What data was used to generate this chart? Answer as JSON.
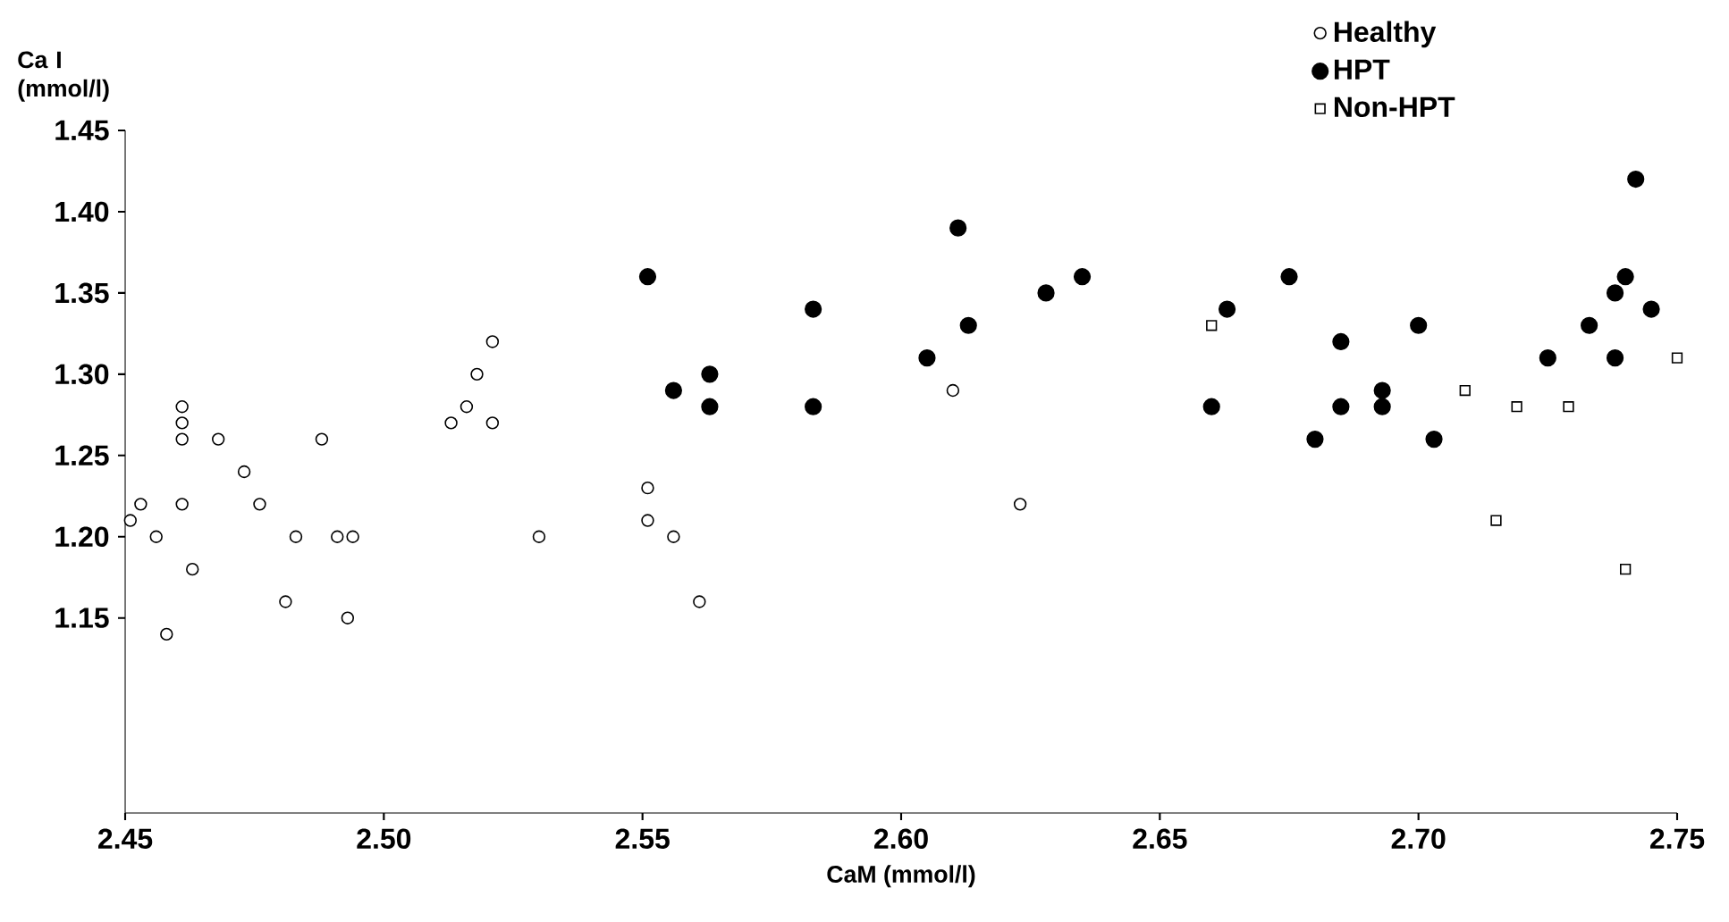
{
  "chart_data": {
    "type": "scatter",
    "xlabel": "CaM (mmol/l)",
    "ylabel": "Ca I (mmol/l)",
    "xlim": [
      2.45,
      2.75
    ],
    "ylim": [
      1.03,
      1.45
    ],
    "xticks": [
      2.45,
      {
        "value": 2.5,
        "label": "2.50"
      },
      2.55,
      {
        "value": 2.6,
        "label": "2.60"
      },
      2.65,
      {
        "value": 2.7,
        "label": "2.70"
      },
      2.75
    ],
    "yticks": [
      1.15,
      {
        "value": 1.2,
        "label": "1.20"
      },
      1.25,
      {
        "value": 1.3,
        "label": "1.30"
      },
      1.35,
      {
        "value": 1.4,
        "label": "1.40"
      },
      1.45
    ],
    "grid": false,
    "legend": "top right",
    "series": [
      {
        "name": "Healthy",
        "color": "#ffffff",
        "marker": "circle",
        "x": [
          2.451,
          2.453,
          2.456,
          2.458,
          2.461,
          2.461,
          2.461,
          2.461,
          2.463,
          2.468,
          2.473,
          2.476,
          2.481,
          2.483,
          2.488,
          2.491,
          2.494,
          2.493,
          2.513,
          2.516,
          2.518,
          2.521,
          2.521,
          2.53,
          2.551,
          2.551,
          2.556,
          2.561,
          2.61,
          2.623
        ],
        "values": [
          1.21,
          1.22,
          1.2,
          1.14,
          1.28,
          1.27,
          1.26,
          1.22,
          1.18,
          1.26,
          1.24,
          1.22,
          1.16,
          1.2,
          1.26,
          1.2,
          1.2,
          1.15,
          1.27,
          1.28,
          1.3,
          1.32,
          1.27,
          1.2,
          1.23,
          1.21,
          1.2,
          1.16,
          1.29,
          1.22
        ]
      },
      {
        "name": "HPT",
        "color": "#000000",
        "marker": "circle",
        "x": [
          2.551,
          2.556,
          2.563,
          2.563,
          2.583,
          2.583,
          2.605,
          2.611,
          2.613,
          2.628,
          2.635,
          2.66,
          2.663,
          2.675,
          2.685,
          2.685,
          2.68,
          2.693,
          2.693,
          2.7,
          2.703,
          2.725,
          2.733,
          2.738,
          2.74,
          2.742,
          2.738,
          2.745
        ],
        "values": [
          1.36,
          1.29,
          1.3,
          1.28,
          1.34,
          1.28,
          1.31,
          1.39,
          1.33,
          1.35,
          1.36,
          1.28,
          1.34,
          1.36,
          1.32,
          1.28,
          1.26,
          1.29,
          1.28,
          1.33,
          1.26,
          1.31,
          1.33,
          1.35,
          1.36,
          1.42,
          1.31,
          1.34
        ]
      },
      {
        "name": "Non-HPT",
        "color": "#ffffff",
        "marker": "square",
        "x": [
          2.66,
          2.709,
          2.719,
          2.729,
          2.715,
          2.74,
          2.75
        ],
        "values": [
          1.33,
          1.29,
          1.28,
          1.28,
          1.21,
          1.18,
          1.31
        ]
      }
    ]
  }
}
